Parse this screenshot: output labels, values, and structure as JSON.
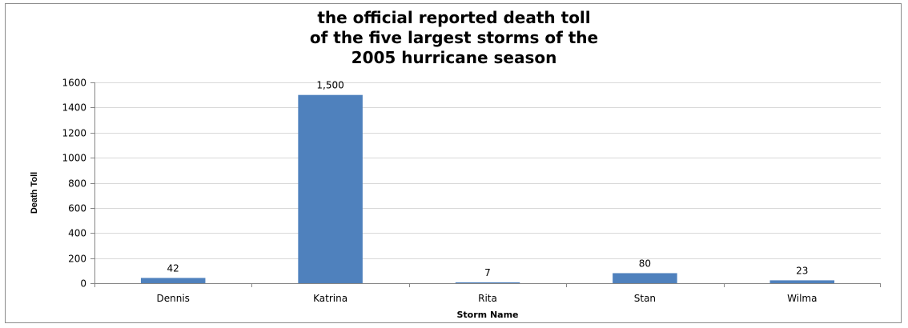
{
  "chart_data": {
    "type": "bar",
    "title_lines": [
      "the official reported death toll",
      "of the five largest storms of the",
      "2005 hurricane season"
    ],
    "categories": [
      "Dennis",
      "Katrina",
      "Rita",
      "Stan",
      "Wilma"
    ],
    "values": [
      42,
      1500,
      7,
      80,
      23
    ],
    "data_labels": [
      "42",
      "1,500",
      "7",
      "80",
      "23"
    ],
    "xlabel": "Storm Name",
    "ylabel": "Death Toll",
    "ylim": [
      0,
      1600
    ],
    "yticks": [
      0,
      200,
      400,
      600,
      800,
      1000,
      1200,
      1400,
      1600
    ],
    "grid": true,
    "legend": "none",
    "bar_color": "#4f81bd",
    "grid_color": "#d9d9d9"
  }
}
